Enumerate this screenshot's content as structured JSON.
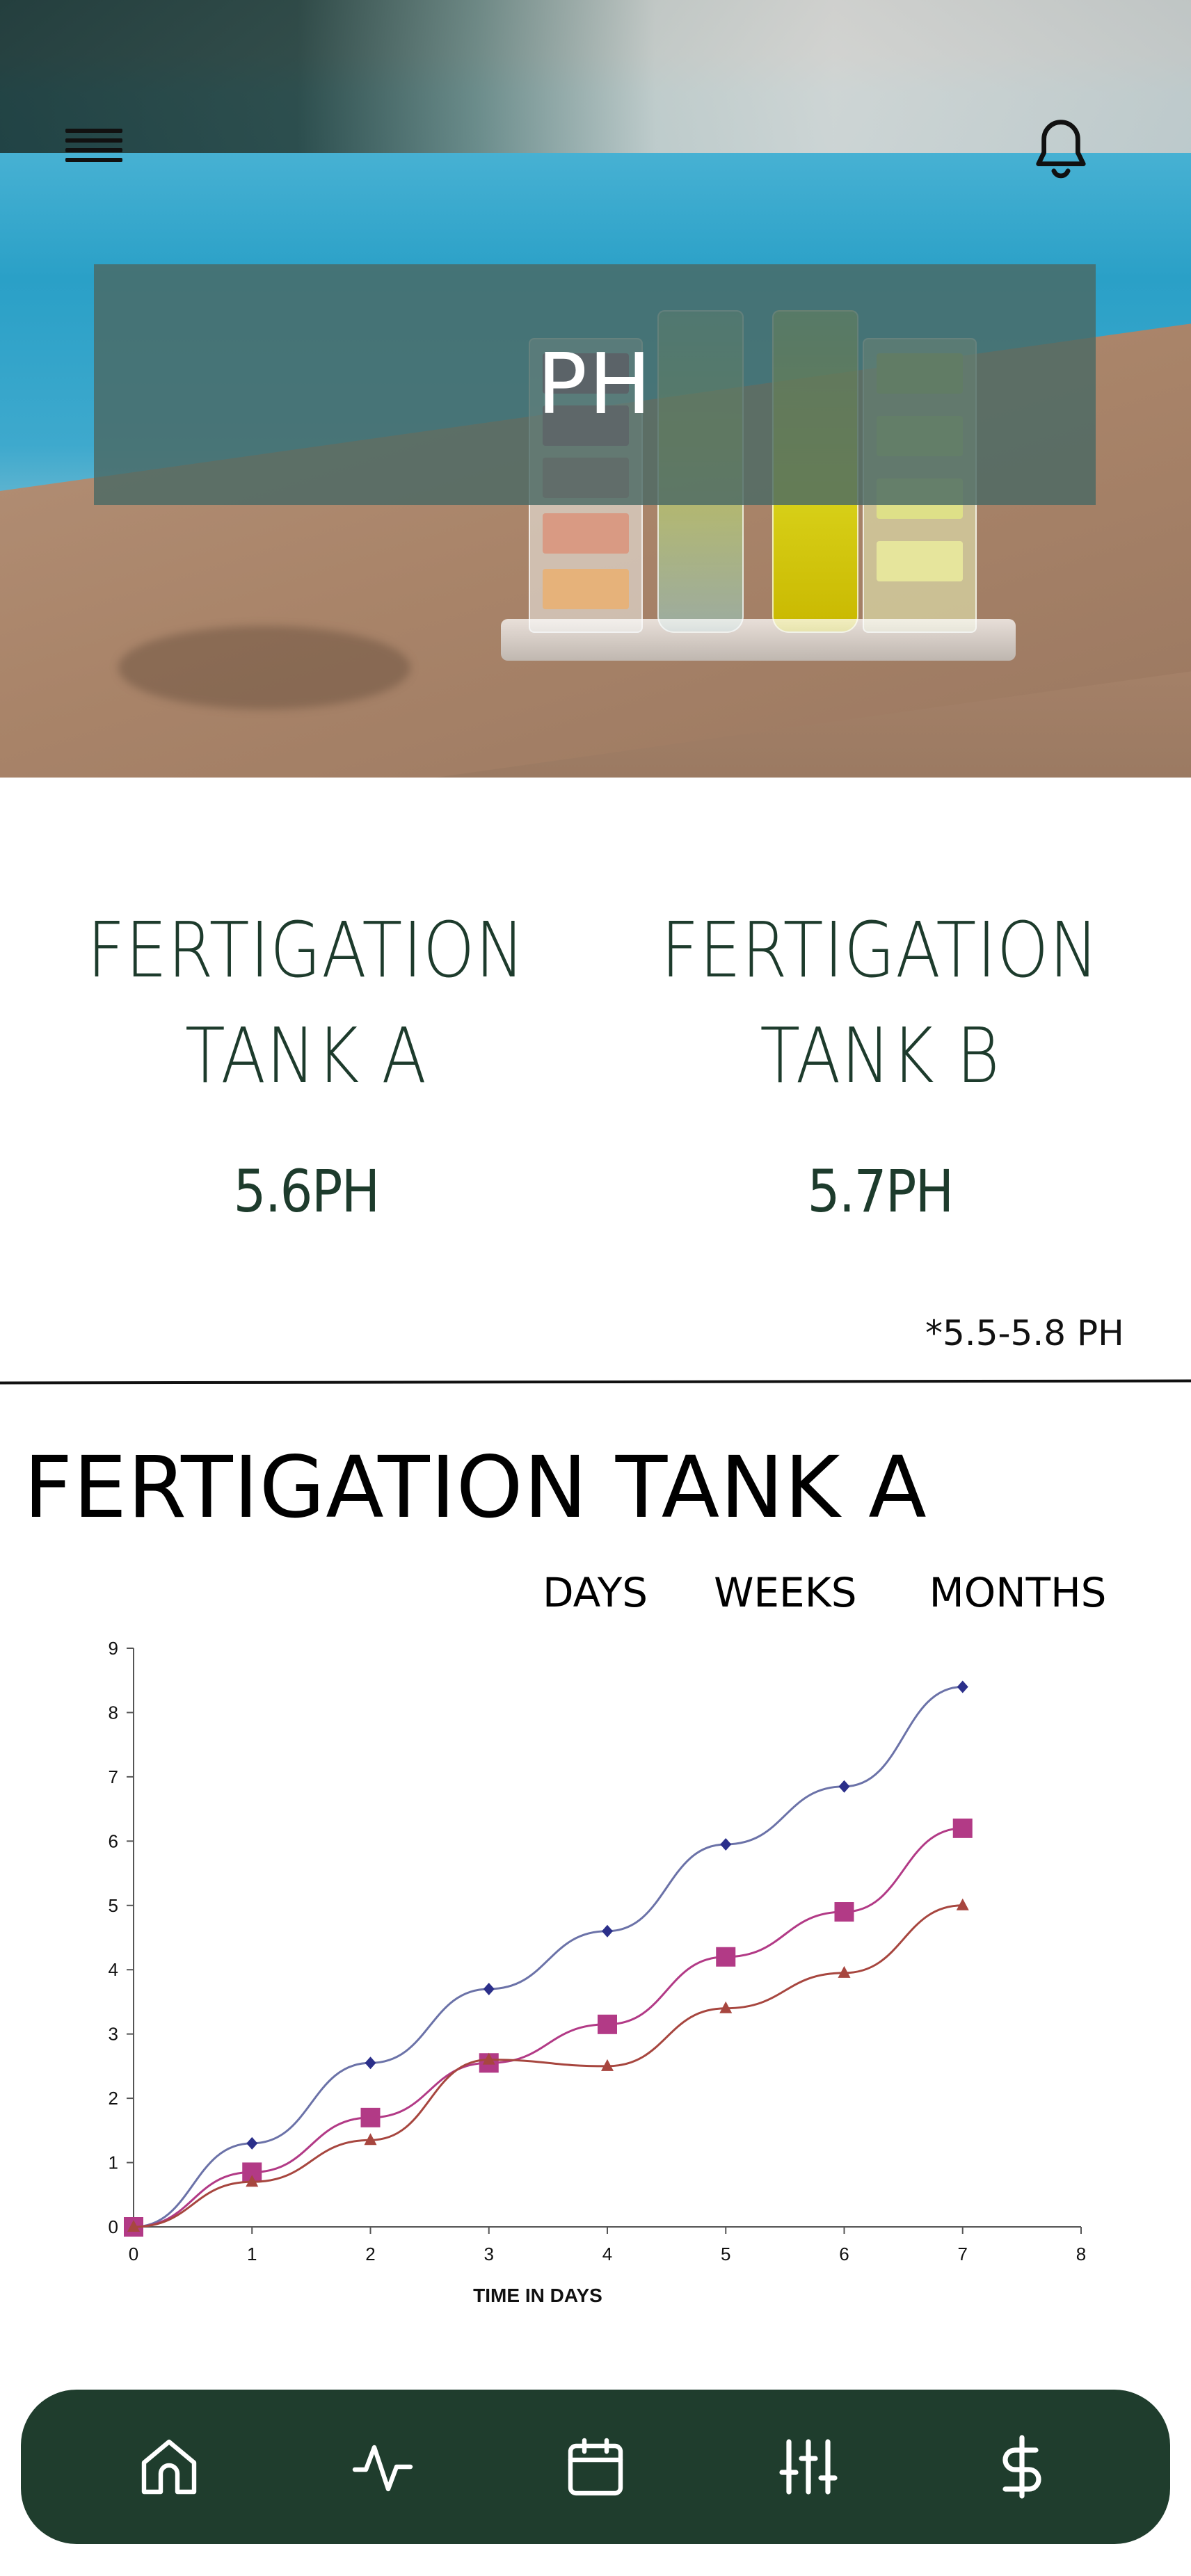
{
  "header": {
    "title": "PH",
    "menu_icon": "hamburger-menu-icon",
    "notification_icon": "bell-icon"
  },
  "tanks": [
    {
      "name_line1": "FERTIGATION",
      "name_line2": "TANK A",
      "value": "5.6PH"
    },
    {
      "name_line1": "FERTIGATION",
      "name_line2": "TANK B",
      "value": "5.7PH"
    }
  ],
  "range_note": "*5.5-5.8 PH",
  "section_title": "FERTIGATION TANK A",
  "range_tabs": [
    "DAYS",
    "WEEKS",
    "MONTHS"
  ],
  "colors": {
    "brand_dark_green": "#1f3d2d",
    "text_green": "#1d3b2c",
    "series_blue": "#6b72a8",
    "series_pink": "#b23a86",
    "series_brown": "#a7463f"
  },
  "chart_data": {
    "type": "line",
    "xlabel": "TIME IN DAYS",
    "ylabel": "",
    "xlim": [
      0,
      8
    ],
    "ylim": [
      0,
      9
    ],
    "x_ticks": [
      "0",
      "1",
      "2",
      "3",
      "4",
      "5",
      "6",
      "7",
      "8"
    ],
    "y_ticks": [
      "0",
      "1",
      "2",
      "3",
      "4",
      "5",
      "6",
      "7",
      "8",
      "9"
    ],
    "x": [
      0,
      1,
      2,
      3,
      4,
      5,
      6,
      7
    ],
    "series": [
      {
        "marker": "diamond",
        "values": [
          0,
          1.3,
          2.55,
          3.7,
          4.6,
          5.95,
          6.85,
          8.4
        ]
      },
      {
        "marker": "square",
        "values": [
          0,
          0.85,
          1.7,
          2.55,
          3.15,
          4.2,
          4.9,
          6.2
        ]
      },
      {
        "marker": "triangle",
        "values": [
          0,
          0.7,
          1.35,
          2.6,
          2.5,
          3.4,
          3.95,
          5.0
        ]
      }
    ]
  },
  "nav": {
    "items": [
      {
        "icon": "home-icon"
      },
      {
        "icon": "activity-icon"
      },
      {
        "icon": "calendar-icon"
      },
      {
        "icon": "sliders-icon"
      },
      {
        "icon": "dollar-icon"
      }
    ]
  }
}
